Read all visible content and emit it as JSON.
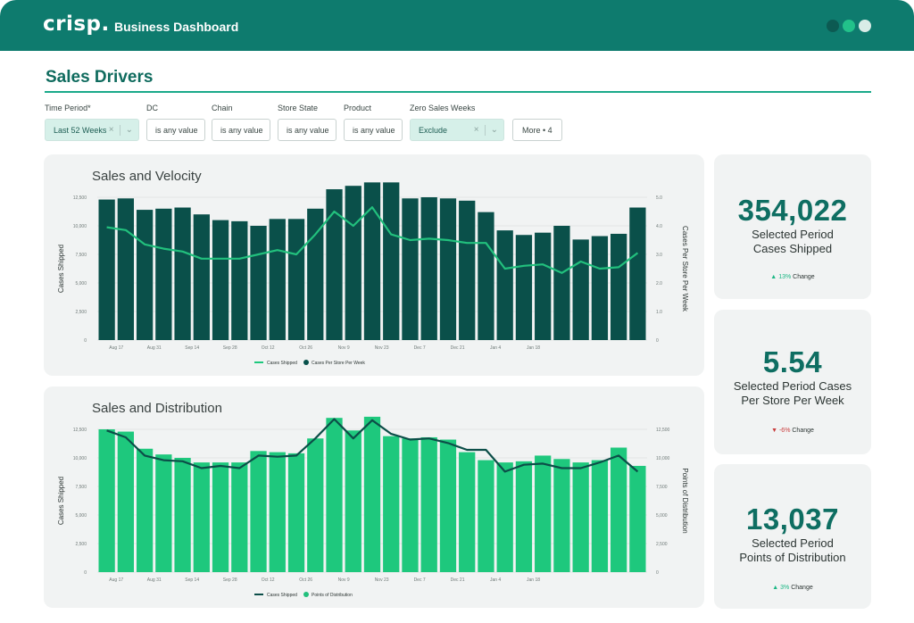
{
  "header": {
    "logo": "crisp.",
    "title": "Business Dashboard",
    "window_dots": [
      "#0c5a52",
      "#22c18a",
      "#d9ece7"
    ]
  },
  "page": {
    "title": "Sales Drivers"
  },
  "filters": [
    {
      "label": "Time Period*",
      "value": "Last 52 Weeks",
      "active": true
    },
    {
      "label": "DC",
      "value": "is any value",
      "active": false
    },
    {
      "label": "Chain",
      "value": "is any value",
      "active": false
    },
    {
      "label": "Store State",
      "value": "is any value",
      "active": false
    },
    {
      "label": "Product",
      "value": "is any value",
      "active": false
    },
    {
      "label": "Zero Sales Weeks",
      "value": "Exclude",
      "active": true
    }
  ],
  "more_button": "More • 4",
  "kpis": [
    {
      "value": "354,022",
      "label_line1": "Selected Period",
      "label_line2": "Cases Shipped",
      "change": "13%",
      "change_suffix": "Change",
      "direction": "up",
      "arrow": "▲"
    },
    {
      "value": "5.54",
      "label_line1": "Selected Period Cases",
      "label_line2": "Per Store Per Week",
      "change": "-6%",
      "change_suffix": "Change",
      "direction": "down",
      "arrow": "▼"
    },
    {
      "value": "13,037",
      "label_line1": "Selected Period",
      "label_line2": "Points of Distribution",
      "change": "3%",
      "change_suffix": "Change",
      "direction": "up",
      "arrow": "▲"
    }
  ],
  "chart_data": [
    {
      "type": "bar",
      "title": "Sales and Velocity",
      "ylabel": "Cases Shipped",
      "y2label": "Cases Per Store Per Week",
      "ylim": [
        0,
        12500
      ],
      "y2lim": [
        0,
        5.0
      ],
      "yticks": [
        "12,500",
        "10,000",
        "7,500",
        "5,000",
        "2,500",
        "0"
      ],
      "y2ticks": [
        "5.0",
        "4.0",
        "3.0",
        "2.0",
        "1.0",
        "0"
      ],
      "xticks": [
        "Aug 17",
        "Aug 31",
        "Sep 14",
        "Sep 28",
        "Oct 12",
        "Oct 26",
        "Nov 9",
        "Nov 23",
        "Dec 7",
        "Dec 21",
        "Jan 4",
        "Jan 18"
      ],
      "legend": [
        {
          "name": "Cases Shipped",
          "color": "#1ec87d",
          "shape": "line"
        },
        {
          "name": "Cases Per Store Per Week",
          "color": "#08514b",
          "shape": "dot"
        }
      ],
      "bar_color": "#0a504a",
      "line_color": "#22c07d",
      "bars": [
        12300,
        12400,
        11400,
        11500,
        11600,
        11000,
        10500,
        10400,
        10000,
        10600,
        10600,
        11500,
        13200,
        13500,
        13800,
        13800,
        12400,
        12500,
        12400,
        12200,
        11200,
        9600,
        9200,
        9400,
        10000,
        8800,
        9100,
        9300,
        11600
      ],
      "line": [
        3.95,
        3.85,
        3.35,
        3.2,
        3.1,
        2.85,
        2.85,
        2.85,
        3.0,
        3.15,
        3.0,
        3.7,
        4.5,
        4.0,
        4.65,
        3.7,
        3.5,
        3.55,
        3.5,
        3.4,
        3.4,
        2.5,
        2.6,
        2.65,
        2.35,
        2.75,
        2.5,
        2.55,
        3.05
      ]
    },
    {
      "type": "bar",
      "title": "Sales and Distribution",
      "ylabel": "Cases Shipped",
      "y2label": "Points of Distribution",
      "ylim": [
        0,
        12500
      ],
      "y2lim": [
        0,
        12500
      ],
      "yticks": [
        "12,500",
        "10,000",
        "7,500",
        "5,000",
        "2,500",
        "0"
      ],
      "y2ticks": [
        "12,500",
        "10,000",
        "7,500",
        "5,000",
        "2,500",
        "0"
      ],
      "xticks": [
        "Aug 17",
        "Aug 31",
        "Sep 14",
        "Sep 28",
        "Oct 12",
        "Oct 26",
        "Nov 9",
        "Nov 23",
        "Dec 7",
        "Dec 21",
        "Jan 4",
        "Jan 18"
      ],
      "legend": [
        {
          "name": "Cases Shipped",
          "color": "#0c4e48",
          "shape": "line"
        },
        {
          "name": "Points of Distribution",
          "color": "#22c07d",
          "shape": "dot"
        }
      ],
      "bar_color": "#1ec87d",
      "line_color": "#0c4e48",
      "bars": [
        12500,
        12300,
        10800,
        10300,
        10000,
        9600,
        9600,
        9600,
        10600,
        10500,
        10400,
        11700,
        13500,
        12400,
        13600,
        11900,
        11700,
        11800,
        11600,
        10500,
        9800,
        9600,
        9700,
        10200,
        9900,
        9600,
        9800,
        10900,
        9300
      ],
      "line": [
        12400,
        11800,
        10200,
        9800,
        9700,
        9100,
        9300,
        9100,
        10200,
        10100,
        10200,
        11700,
        13400,
        11700,
        13300,
        12100,
        11600,
        11700,
        11300,
        10700,
        10700,
        8800,
        9400,
        9500,
        9100,
        9100,
        9600,
        10200,
        8800
      ]
    }
  ]
}
